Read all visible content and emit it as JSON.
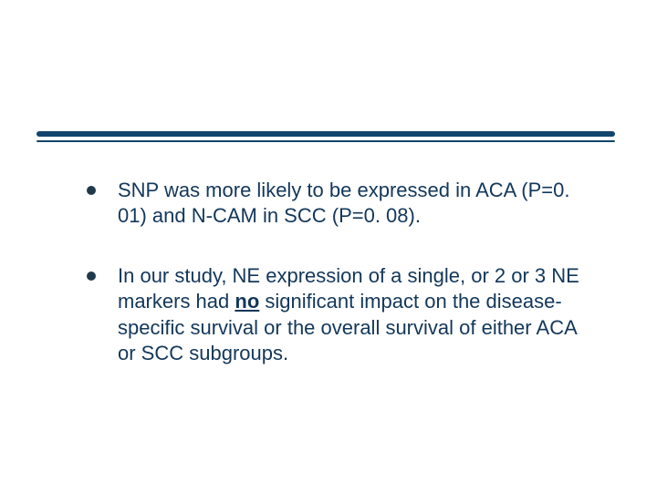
{
  "slide": {
    "rule": {
      "thick_color": "#12456b",
      "thin_color": "#12456b"
    },
    "text_color": "#13375a",
    "background_color": "#ffffff",
    "font_size_pt": 22,
    "bullets": [
      {
        "segments": [
          {
            "t": "SNP was more likely to be expressed in ACA (P=0. 01) and N-CAM in SCC (P=0. 08)."
          }
        ]
      },
      {
        "segments": [
          {
            "t": "In our study, NE expression of a single, or 2 or 3 NE markers had "
          },
          {
            "t": "no",
            "u": true
          },
          {
            "t": " significant impact on the disease-specific survival or the overall survival of either ACA or SCC subgroups."
          }
        ]
      }
    ]
  }
}
